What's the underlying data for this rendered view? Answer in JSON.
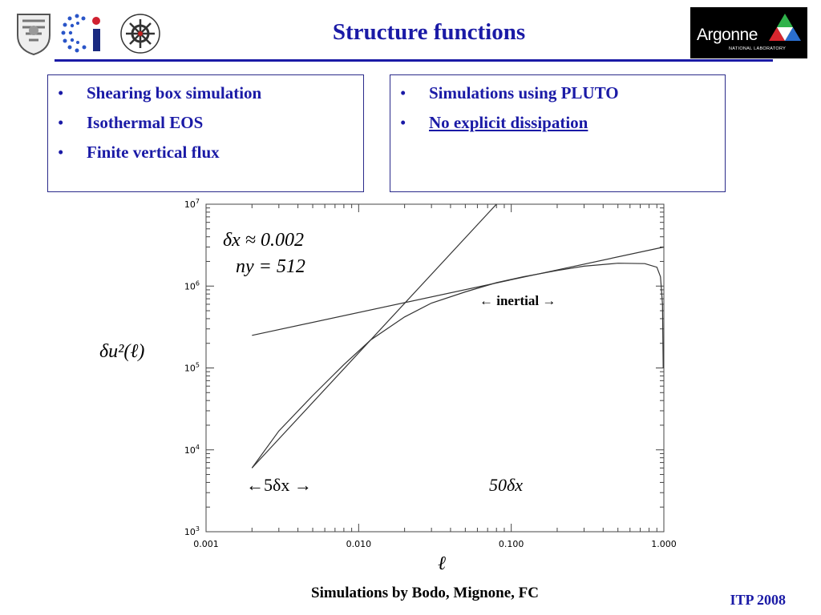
{
  "slide": {
    "title": "Structure functions",
    "left_bullets": [
      "Shearing box simulation",
      "Isothermal EOS",
      "Finite vertical flux"
    ],
    "right_bullets": [
      "Simulations using PLUTO",
      "No explicit dissipation"
    ],
    "footer_credit": "Simulations by Bodo, Mignone, FC",
    "footer_tag": "ITP 2008",
    "argonne_name": "Argonne",
    "argonne_sub": "NATIONAL LABORATORY",
    "bullet_glyph": "•",
    "colors": {
      "title": "#1a1aa6",
      "box_border": "#2a2a8a",
      "curve": "#333333"
    },
    "logos": [
      "university-seal-icon",
      "ci-logo-icon",
      "cmso-logo-icon",
      "argonne-logo-icon"
    ]
  },
  "chart_data": {
    "type": "line",
    "title": "",
    "xlabel": "ℓ",
    "ylabel": "δu²(ℓ)",
    "x_scale": "log",
    "y_scale": "log",
    "xlim": [
      0.001,
      1.0
    ],
    "ylim": [
      1000,
      10000000
    ],
    "x_ticks": [
      0.001,
      0.01,
      0.1,
      1.0
    ],
    "x_tick_labels": [
      "0.001",
      "0.010",
      "0.100",
      "1.000"
    ],
    "y_ticks": [
      1000,
      10000,
      100000,
      1000000,
      10000000
    ],
    "y_tick_base": "10",
    "y_tick_exponents": [
      "3",
      "4",
      "5",
      "6",
      "7"
    ],
    "grid": false,
    "series": [
      {
        "x": [
          0.002,
          0.003,
          0.005,
          0.008,
          0.012,
          0.02,
          0.03,
          0.05,
          0.08,
          0.12,
          0.2,
          0.3,
          0.5,
          0.75,
          0.9,
          0.95,
          0.98,
          0.99
        ],
        "y": [
          6000,
          17000,
          46000,
          110000,
          220000,
          420000,
          620000,
          850000,
          1100000,
          1300000,
          1550000,
          1750000,
          1900000,
          1880000,
          1700000,
          1300000,
          600000,
          100000
        ]
      },
      {
        "x": [
          0.002,
          0.08
        ],
        "y": [
          6000,
          10000000
        ]
      },
      {
        "x": [
          0.002,
          1.0
        ],
        "y": [
          250000,
          3000000
        ]
      }
    ],
    "annotations": {
      "dx_sym": "δx ≈ 0.002",
      "ny_sym": "ny = 512",
      "inertial": "← inertial →",
      "five_dx": "←5δx →",
      "fifty_dx": "50δx"
    }
  }
}
